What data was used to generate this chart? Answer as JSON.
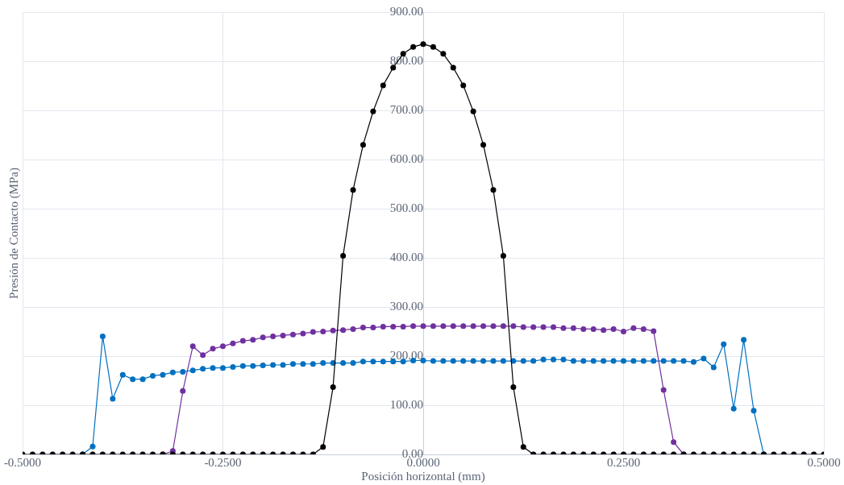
{
  "chart_data": {
    "type": "line",
    "xlabel": "Posición horizontal (mm)",
    "ylabel": "Presión de Contacto (MPa)",
    "x": [
      -0.5,
      -0.4875,
      -0.475,
      -0.4625,
      -0.45,
      -0.4375,
      -0.425,
      -0.4125,
      -0.4,
      -0.3875,
      -0.375,
      -0.3625,
      -0.35,
      -0.3375,
      -0.325,
      -0.3125,
      -0.3,
      -0.2875,
      -0.275,
      -0.2625,
      -0.25,
      -0.2375,
      -0.225,
      -0.2125,
      -0.2,
      -0.1875,
      -0.175,
      -0.1625,
      -0.15,
      -0.1375,
      -0.125,
      -0.1125,
      -0.1,
      -0.0875,
      -0.075,
      -0.0625,
      -0.05,
      -0.0375,
      -0.025,
      -0.0125,
      0,
      0.0125,
      0.025,
      0.0375,
      0.05,
      0.0625,
      0.075,
      0.0875,
      0.1,
      0.1125,
      0.125,
      0.1375,
      0.15,
      0.1625,
      0.175,
      0.1875,
      0.2,
      0.2125,
      0.225,
      0.2375,
      0.25,
      0.2625,
      0.275,
      0.2875,
      0.3,
      0.3125,
      0.325,
      0.3375,
      0.35,
      0.3625,
      0.375,
      0.3875,
      0.4,
      0.4125,
      0.425,
      0.4375,
      0.45,
      0.4625,
      0.475,
      0.4875,
      0.5
    ],
    "series": [
      {
        "color": "#0070c0",
        "values": [
          null,
          null,
          null,
          null,
          null,
          null,
          0,
          16,
          240,
          113,
          162,
          153,
          153,
          160,
          162,
          167,
          168,
          171,
          174,
          176,
          176,
          178,
          180,
          180,
          181,
          182,
          182,
          184,
          184,
          184,
          186,
          186,
          186,
          186,
          189,
          189,
          189,
          189,
          189,
          191,
          191,
          190,
          190,
          190,
          190,
          190,
          190,
          190,
          190,
          190,
          190,
          190,
          193,
          193,
          193,
          190,
          190,
          190,
          190,
          190,
          190,
          190,
          190,
          190,
          190,
          190,
          190,
          188,
          195,
          177,
          224,
          93,
          233,
          89,
          0,
          null,
          null,
          null,
          null,
          null,
          null
        ]
      },
      {
        "color": "#7030a0",
        "values": [
          null,
          null,
          null,
          null,
          null,
          null,
          null,
          null,
          null,
          null,
          null,
          null,
          null,
          null,
          0,
          7,
          129,
          220,
          202,
          215,
          220,
          226,
          231,
          233,
          238,
          240,
          242,
          244,
          246,
          249,
          250,
          252,
          253,
          255,
          258,
          258,
          260,
          260,
          260,
          261,
          261,
          261,
          261,
          261,
          261,
          261,
          261,
          261,
          261,
          261,
          259,
          259,
          259,
          259,
          257,
          257,
          255,
          255,
          253,
          255,
          250,
          257,
          255,
          251,
          131,
          25,
          0,
          null,
          null,
          null,
          null,
          null,
          null,
          null,
          null,
          null,
          null,
          null,
          null,
          null,
          null
        ]
      },
      {
        "color": "#000000",
        "values": [
          0,
          0,
          0,
          0,
          0,
          0,
          0,
          0,
          0,
          0,
          0,
          0,
          0,
          0,
          0,
          0,
          0,
          0,
          0,
          0,
          0,
          0,
          0,
          0,
          0,
          0,
          0,
          0,
          0,
          0,
          15,
          137,
          404,
          538,
          630,
          698,
          751,
          787,
          815,
          829,
          835,
          829,
          815,
          787,
          751,
          698,
          630,
          538,
          404,
          137,
          15,
          0,
          0,
          0,
          0,
          0,
          0,
          0,
          0,
          0,
          0,
          0,
          0,
          0,
          0,
          0,
          0,
          0,
          0,
          0,
          0,
          0,
          0,
          0,
          0,
          0,
          0,
          0,
          0,
          0,
          0
        ]
      }
    ],
    "xlim": [
      -0.5,
      0.5
    ],
    "xticks": [
      {
        "value": -0.5,
        "label": "-0.5000"
      },
      {
        "value": -0.25,
        "label": "-0.2500"
      },
      {
        "value": 0,
        "label": "0.0000"
      },
      {
        "value": 0.25,
        "label": "0.2500"
      },
      {
        "value": 0.5,
        "label": "0.5000"
      }
    ],
    "ylim": [
      0,
      900
    ],
    "yticks": [
      {
        "value": 0,
        "label": "0.00"
      },
      {
        "value": 100,
        "label": "100.00"
      },
      {
        "value": 200,
        "label": "200.00"
      },
      {
        "value": 300,
        "label": "300.00"
      },
      {
        "value": 400,
        "label": "400.00"
      },
      {
        "value": 500,
        "label": "500.00"
      },
      {
        "value": 600,
        "label": "600.00"
      },
      {
        "value": 700,
        "label": "700.00"
      },
      {
        "value": 800,
        "label": "800.00"
      },
      {
        "value": 900,
        "label": "900.00"
      }
    ],
    "grid": true,
    "legend": false,
    "marker": "circle",
    "line_style": "solid"
  }
}
